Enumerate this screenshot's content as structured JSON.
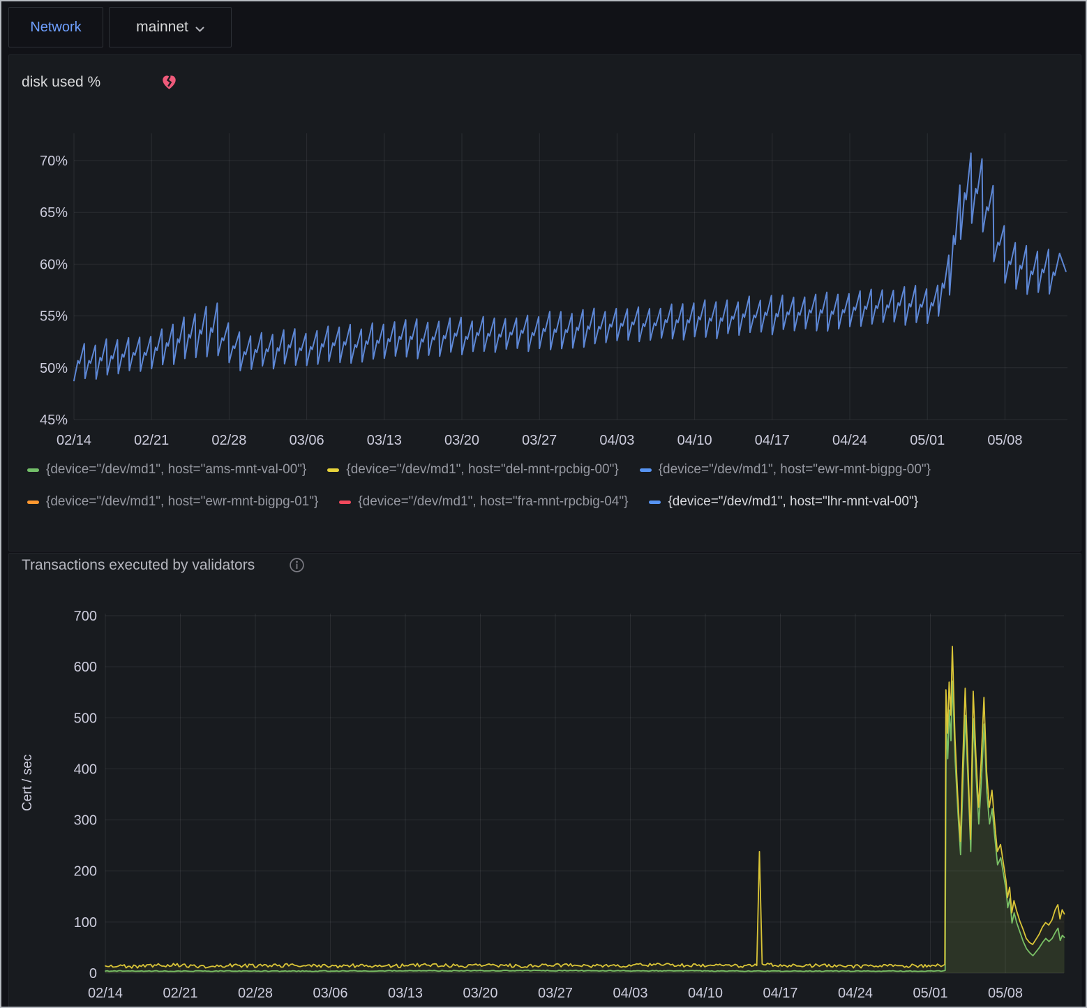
{
  "topbar": {
    "network_label": "Network",
    "network_value": "mainnet"
  },
  "colors": {
    "page_bg": "#111217",
    "panel_bg": "#181b1f",
    "panel_border": "#23262c",
    "outer_border": "#b6bac0",
    "grid": "rgba(204,204,220,0.10)",
    "tick_text": "#ccccdc",
    "accent_blue": "#6e9fff",
    "alert_pink": "#ee5a7a",
    "series_blue": "#5d87d5",
    "series_yellow": "#d9c437",
    "series_green": "#73bf69"
  },
  "disk_panel": {
    "title": "disk used %",
    "alert_icon": "broken-heart-icon",
    "legend": {
      "items": [
        {
          "label": "{device=\"/dev/md1\", host=\"ams-mnt-val-00\"}",
          "color": "#73bf69",
          "highlighted": false
        },
        {
          "label": "{device=\"/dev/md1\", host=\"del-mnt-rpcbig-00\"}",
          "color": "#e7d33b",
          "highlighted": false
        },
        {
          "label": "{device=\"/dev/md1\", host=\"ewr-mnt-bigpg-00\"}",
          "color": "#5794f2",
          "highlighted": false
        },
        {
          "label": "{device=\"/dev/md1\", host=\"ewr-mnt-bigpg-01\"}",
          "color": "#ff9830",
          "highlighted": false
        },
        {
          "label": "{device=\"/dev/md1\", host=\"fra-mnt-rpcbig-04\"}",
          "color": "#f2495c",
          "highlighted": false
        },
        {
          "label": "{device=\"/dev/md1\", host=\"lhr-mnt-val-00\"}",
          "color": "#5794f2",
          "highlighted": true
        }
      ]
    }
  },
  "tx_panel": {
    "title": "Transactions executed by validators",
    "info_icon": "info-icon",
    "y_axis_label": "Cert / sec"
  },
  "chart_data": [
    {
      "type": "line",
      "title": "disk used %",
      "xlabel": "",
      "ylabel": "disk used %",
      "x_tick_labels": [
        "02/14",
        "02/21",
        "02/28",
        "03/06",
        "03/13",
        "03/20",
        "03/27",
        "04/03",
        "04/10",
        "04/17",
        "04/24",
        "05/01",
        "05/08"
      ],
      "y_ticks": [
        45,
        50,
        55,
        60,
        65,
        70
      ],
      "y_tick_labels": [
        "45%",
        "50%",
        "55%",
        "60%",
        "65%",
        "70%"
      ],
      "ylim": [
        45,
        72.8
      ],
      "x_days_per_tick": 7,
      "x_total_days": 89.5,
      "grid": true,
      "legend_position": "bottom",
      "series": [
        {
          "name": "{device=\"/dev/md1\", host=\"lhr-mnt-val-00\"}",
          "color": "#5d87d5",
          "style": "daily-sawtooth",
          "envelope_keyframes": [
            [
              0,
              48.6,
              51.9
            ],
            [
              7,
              49.9,
              53.3
            ],
            [
              13.35,
              51.5,
              56.3
            ],
            [
              14.3,
              49.9,
              53.2
            ],
            [
              21,
              50.3,
              53.6
            ],
            [
              28,
              50.9,
              54.2
            ],
            [
              35,
              51.4,
              54.7
            ],
            [
              42,
              51.9,
              55.2
            ],
            [
              49,
              52.4,
              55.7
            ],
            [
              56,
              52.9,
              56.2
            ],
            [
              63,
              53.4,
              56.8
            ],
            [
              70,
              53.9,
              57.3
            ],
            [
              77,
              54.5,
              57.9
            ],
            [
              78.6,
              55.1,
              58.4
            ],
            [
              79.4,
              58.5,
              64.0
            ],
            [
              80.1,
              63.0,
              69.0
            ],
            [
              80.9,
              64.0,
              70.6
            ],
            [
              81.9,
              63.2,
              70.4
            ],
            [
              82.9,
              60.5,
              67.5
            ],
            [
              83.9,
              58.5,
              63.5
            ],
            [
              85.2,
              57.3,
              61.8
            ],
            [
              87,
              57.2,
              61.2
            ],
            [
              89.5,
              57.6,
              61.0
            ]
          ]
        }
      ]
    },
    {
      "type": "line",
      "title": "Transactions executed by validators",
      "xlabel": "",
      "ylabel": "Cert / sec",
      "x_tick_labels": [
        "02/14",
        "02/21",
        "02/28",
        "03/06",
        "03/13",
        "03/20",
        "03/27",
        "04/03",
        "04/10",
        "04/17",
        "04/24",
        "05/01",
        "05/08"
      ],
      "y_ticks": [
        0,
        100,
        200,
        300,
        400,
        500,
        600,
        700
      ],
      "ylim": [
        0,
        728
      ],
      "x_days_per_tick": 7,
      "x_total_days": 89.5,
      "grid": true,
      "series": [
        {
          "name": "yellow",
          "color": "#d9c437",
          "fill_opacity": 0.06,
          "baseline_noise": 3.5,
          "keypoints": [
            [
              0,
              14
            ],
            [
              3,
              13
            ],
            [
              6,
              16
            ],
            [
              9,
              13
            ],
            [
              12,
              15
            ],
            [
              15,
              14
            ],
            [
              18,
              16
            ],
            [
              21,
              13
            ],
            [
              24,
              15
            ],
            [
              27,
              14
            ],
            [
              30,
              16
            ],
            [
              33,
              14
            ],
            [
              36,
              15
            ],
            [
              39,
              14
            ],
            [
              42,
              16
            ],
            [
              45,
              14
            ],
            [
              48,
              15
            ],
            [
              51,
              16
            ],
            [
              54,
              15
            ],
            [
              57,
              14
            ],
            [
              60,
              15
            ],
            [
              60.8,
              18
            ],
            [
              61.05,
              238
            ],
            [
              61.3,
              18
            ],
            [
              64,
              14
            ],
            [
              67,
              15
            ],
            [
              70,
              13
            ],
            [
              73,
              15
            ],
            [
              76,
              14
            ],
            [
              78.0,
              15
            ],
            [
              78.35,
              17
            ],
            [
              78.45,
              555
            ],
            [
              78.6,
              470
            ],
            [
              78.75,
              570
            ],
            [
              78.9,
              505
            ],
            [
              79.05,
              640
            ],
            [
              79.3,
              460
            ],
            [
              79.55,
              350
            ],
            [
              79.8,
              258
            ],
            [
              80.05,
              430
            ],
            [
              80.25,
              558
            ],
            [
              80.5,
              415
            ],
            [
              80.75,
              262
            ],
            [
              81.0,
              552
            ],
            [
              81.25,
              425
            ],
            [
              81.5,
              325
            ],
            [
              81.75,
              418
            ],
            [
              82.0,
              540
            ],
            [
              82.25,
              395
            ],
            [
              82.5,
              325
            ],
            [
              82.75,
              358
            ],
            [
              83.0,
              295
            ],
            [
              83.25,
              238
            ],
            [
              83.55,
              252
            ],
            [
              83.85,
              210
            ],
            [
              84.05,
              182
            ],
            [
              84.2,
              148
            ],
            [
              84.4,
              168
            ],
            [
              84.6,
              118
            ],
            [
              84.8,
              142
            ],
            [
              85.05,
              122
            ],
            [
              85.35,
              102
            ],
            [
              85.65,
              86
            ],
            [
              85.95,
              68
            ],
            [
              86.25,
              60
            ],
            [
              86.55,
              56
            ],
            [
              86.85,
              66
            ],
            [
              87.15,
              76
            ],
            [
              87.45,
              90
            ],
            [
              87.75,
              99
            ],
            [
              88.05,
              94
            ],
            [
              88.35,
              104
            ],
            [
              88.65,
              124
            ],
            [
              88.9,
              134
            ],
            [
              89.1,
              106
            ],
            [
              89.3,
              124
            ],
            [
              89.5,
              116
            ]
          ]
        },
        {
          "name": "green",
          "color": "#73bf69",
          "fill_opacity": 0.1,
          "baseline_noise": 0.8,
          "keypoints": [
            [
              0,
              4
            ],
            [
              20,
              4
            ],
            [
              40,
              5
            ],
            [
              60,
              4
            ],
            [
              78.0,
              4
            ],
            [
              78.38,
              5
            ],
            [
              78.48,
              495
            ],
            [
              78.62,
              420
            ],
            [
              78.78,
              515
            ],
            [
              78.92,
              455
            ],
            [
              79.07,
              572
            ],
            [
              79.32,
              415
            ],
            [
              79.57,
              315
            ],
            [
              79.82,
              232
            ],
            [
              80.07,
              388
            ],
            [
              80.27,
              505
            ],
            [
              80.52,
              375
            ],
            [
              80.77,
              238
            ],
            [
              81.02,
              498
            ],
            [
              81.27,
              385
            ],
            [
              81.52,
              292
            ],
            [
              81.77,
              378
            ],
            [
              82.02,
              488
            ],
            [
              82.27,
              355
            ],
            [
              82.52,
              292
            ],
            [
              82.77,
              322
            ],
            [
              83.02,
              265
            ],
            [
              83.27,
              212
            ],
            [
              83.57,
              226
            ],
            [
              83.87,
              188
            ],
            [
              84.07,
              162
            ],
            [
              84.22,
              128
            ],
            [
              84.42,
              146
            ],
            [
              84.62,
              98
            ],
            [
              84.82,
              118
            ],
            [
              85.07,
              98
            ],
            [
              85.37,
              80
            ],
            [
              85.67,
              62
            ],
            [
              85.97,
              48
            ],
            [
              86.27,
              40
            ],
            [
              86.57,
              34
            ],
            [
              86.87,
              42
            ],
            [
              87.17,
              50
            ],
            [
              87.47,
              60
            ],
            [
              87.77,
              68
            ],
            [
              88.07,
              62
            ],
            [
              88.37,
              68
            ],
            [
              88.67,
              80
            ],
            [
              88.92,
              88
            ],
            [
              89.12,
              64
            ],
            [
              89.32,
              74
            ],
            [
              89.5,
              70
            ]
          ]
        }
      ]
    }
  ]
}
